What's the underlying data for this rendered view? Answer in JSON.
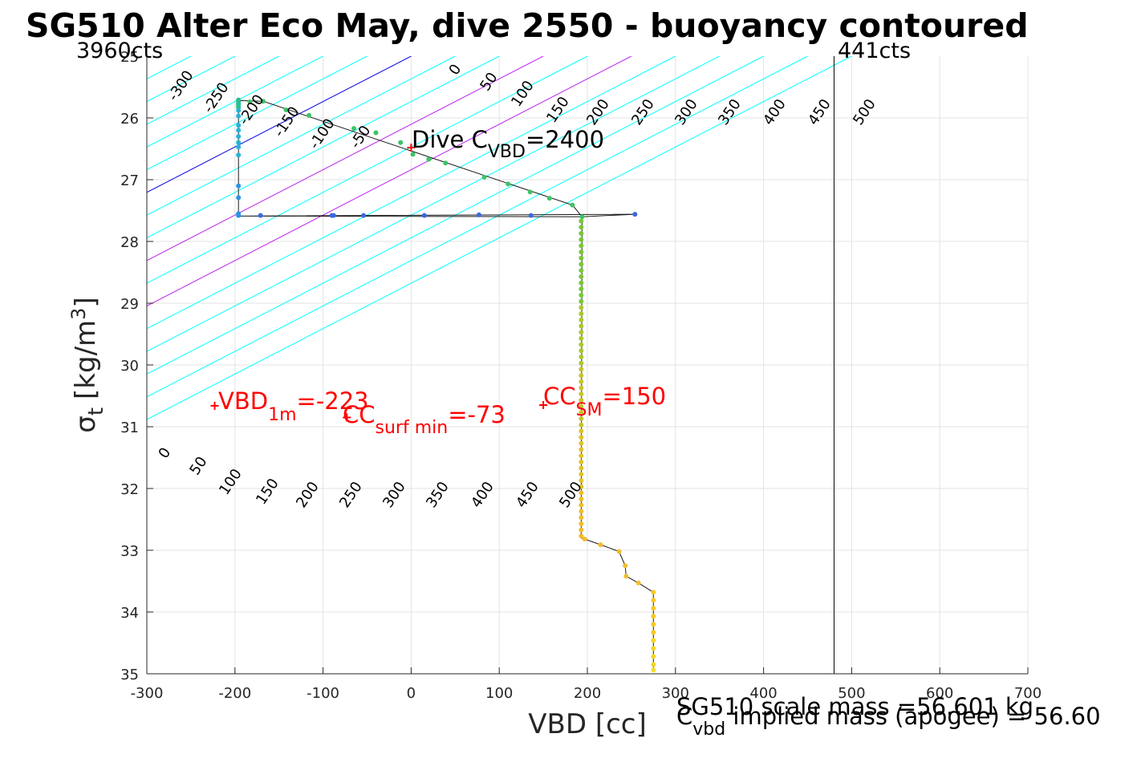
{
  "chart_data": {
    "type": "scatter",
    "title": "SG510 Alter Eco May, dive 2550 - buoyancy contoured",
    "xlabel": "VBD [cc]",
    "ylabel": {
      "sigma": "σ",
      "sub": "t",
      "unit": "[kg/m",
      "sup": "3",
      "close": "]"
    },
    "xlim": [
      -300,
      700
    ],
    "ylim": [
      25,
      35
    ],
    "y_reversed": true,
    "grid": true,
    "x_ticks": [
      -300,
      -200,
      -100,
      0,
      100,
      200,
      300,
      400,
      500,
      600,
      700
    ],
    "y_ticks": [
      26,
      27,
      28,
      29,
      30,
      31,
      32,
      33,
      34,
      35
    ],
    "y_top_partial_label": "25",
    "contours": {
      "slope_cc_per_sigma": -136,
      "cyan_values": [
        -300,
        -250,
        -200,
        -150,
        -100,
        -50,
        50,
        100,
        200,
        300,
        350,
        400,
        450,
        500
      ],
      "magenta_values": [
        150,
        250
      ],
      "blue_value": 0,
      "colors": {
        "cyan": "#00ffff",
        "magenta": "#bb22ee",
        "blue": "#0000dd"
      },
      "top_labels": [
        "-300",
        "-250",
        "-200",
        "-150",
        "-100",
        "-50",
        "0",
        "50",
        "100",
        "150",
        "200",
        "250",
        "300",
        "350",
        "400",
        "450",
        "500"
      ],
      "bottom_labels": [
        "0",
        "50",
        "100",
        "150",
        "200",
        "250",
        "300",
        "350",
        "400",
        "450",
        "500"
      ]
    },
    "vertical_lines": [
      {
        "x": 480,
        "color": "#000000"
      }
    ],
    "count_labels": {
      "left": "3960cts",
      "right": "441cts"
    },
    "profile": [
      {
        "x": -196,
        "y": 25.71,
        "c": "#2bc08f"
      },
      {
        "x": -196,
        "y": 25.73,
        "c": "#2bc08f"
      },
      {
        "x": -196,
        "y": 25.75,
        "c": "#2bc08f"
      },
      {
        "x": -196,
        "y": 25.77,
        "c": "#2bc08f"
      },
      {
        "x": -196,
        "y": 25.79,
        "c": "#2bc08f"
      },
      {
        "x": -196,
        "y": 25.81,
        "c": "#2bc08f"
      },
      {
        "x": -196,
        "y": 25.83,
        "c": "#2bc08f"
      },
      {
        "x": -183,
        "y": 25.74,
        "c": "#3cc467"
      },
      {
        "x": -168,
        "y": 25.73,
        "c": "#3cc467"
      },
      {
        "x": -142,
        "y": 25.87,
        "c": "#3cc467"
      },
      {
        "x": -116,
        "y": 25.96,
        "c": "#3cc467"
      },
      {
        "x": -65,
        "y": 26.17,
        "c": "#3cc467"
      },
      {
        "x": -40,
        "y": 26.24,
        "c": "#3cc467"
      },
      {
        "x": -12,
        "y": 26.4,
        "c": "#3cc467"
      },
      {
        "x": 2,
        "y": 26.59,
        "c": "#3cc467"
      },
      {
        "x": 20,
        "y": 26.67,
        "c": "#3cc467"
      },
      {
        "x": 39,
        "y": 26.73,
        "c": "#3cc467"
      },
      {
        "x": 83,
        "y": 26.96,
        "c": "#3cc467"
      },
      {
        "x": 110,
        "y": 27.07,
        "c": "#3cc467"
      },
      {
        "x": 135,
        "y": 27.2,
        "c": "#3cc467"
      },
      {
        "x": 157,
        "y": 27.3,
        "c": "#3cc467"
      },
      {
        "x": 183,
        "y": 27.41,
        "c": "#3cc467"
      },
      {
        "x": 194,
        "y": 27.6,
        "c": "#3cc467"
      },
      {
        "x": 254,
        "y": 27.56,
        "c": "#3a68e0"
      },
      {
        "x": 136,
        "y": 27.58,
        "c": "#3a68e0"
      },
      {
        "x": 77,
        "y": 27.57,
        "c": "#3a68e0"
      },
      {
        "x": 15,
        "y": 27.58,
        "c": "#3a68e0"
      },
      {
        "x": -54,
        "y": 27.58,
        "c": "#3a68e0"
      },
      {
        "x": -88,
        "y": 27.58,
        "c": "#3a68e0"
      },
      {
        "x": -90,
        "y": 27.58,
        "c": "#3a68e0"
      },
      {
        "x": -171,
        "y": 27.58,
        "c": "#3a68e0"
      },
      {
        "x": -196,
        "y": 27.58,
        "c": "#2596e8"
      },
      {
        "x": -196,
        "y": 27.55,
        "c": "#2596e8"
      },
      {
        "x": -196,
        "y": 27.29,
        "c": "#2596e8"
      },
      {
        "x": -196,
        "y": 27.1,
        "c": "#2596e8"
      },
      {
        "x": -196,
        "y": 26.6,
        "c": "#25b4d8"
      },
      {
        "x": -196,
        "y": 26.47,
        "c": "#25b4d8"
      },
      {
        "x": -196,
        "y": 26.4,
        "c": "#25b4d8"
      },
      {
        "x": -196,
        "y": 26.3,
        "c": "#25b4d8"
      },
      {
        "x": -196,
        "y": 26.2,
        "c": "#25b4d8"
      },
      {
        "x": -196,
        "y": 26.12,
        "c": "#25b4d8"
      },
      {
        "x": -196,
        "y": 25.97,
        "c": "#25b4d8"
      },
      {
        "x": -196,
        "y": 25.88,
        "c": "#25b4d8"
      },
      {
        "x": 193,
        "y": 27.67,
        "c": "#79c63a"
      },
      {
        "x": 193,
        "y": 27.77,
        "c": "#79c63a"
      },
      {
        "x": 193,
        "y": 27.87,
        "c": "#79c63a"
      },
      {
        "x": 193,
        "y": 27.97,
        "c": "#79c63a"
      },
      {
        "x": 193,
        "y": 28.07,
        "c": "#79c63a"
      },
      {
        "x": 193,
        "y": 28.17,
        "c": "#79c63a"
      },
      {
        "x": 193,
        "y": 28.27,
        "c": "#79c63a"
      },
      {
        "x": 193,
        "y": 28.37,
        "c": "#79c63a"
      },
      {
        "x": 193,
        "y": 28.47,
        "c": "#79c63a"
      },
      {
        "x": 193,
        "y": 28.57,
        "c": "#79c63a"
      },
      {
        "x": 193,
        "y": 28.67,
        "c": "#79c63a"
      },
      {
        "x": 193,
        "y": 28.77,
        "c": "#79c63a"
      },
      {
        "x": 193,
        "y": 28.87,
        "c": "#79c63a"
      },
      {
        "x": 193,
        "y": 28.97,
        "c": "#79c63a"
      },
      {
        "x": 193,
        "y": 29.07,
        "c": "#a8c832"
      },
      {
        "x": 193,
        "y": 29.17,
        "c": "#a8c832"
      },
      {
        "x": 193,
        "y": 29.27,
        "c": "#a8c832"
      },
      {
        "x": 193,
        "y": 29.37,
        "c": "#a8c832"
      },
      {
        "x": 193,
        "y": 29.47,
        "c": "#a8c832"
      },
      {
        "x": 193,
        "y": 29.57,
        "c": "#a8c832"
      },
      {
        "x": 193,
        "y": 29.67,
        "c": "#a8c832"
      },
      {
        "x": 193,
        "y": 29.77,
        "c": "#a8c832"
      },
      {
        "x": 193,
        "y": 29.87,
        "c": "#a8c832"
      },
      {
        "x": 193,
        "y": 29.97,
        "c": "#a8c832"
      },
      {
        "x": 193,
        "y": 30.07,
        "c": "#c6c430"
      },
      {
        "x": 193,
        "y": 30.17,
        "c": "#c6c430"
      },
      {
        "x": 193,
        "y": 30.27,
        "c": "#c6c430"
      },
      {
        "x": 193,
        "y": 30.37,
        "c": "#c6c430"
      },
      {
        "x": 193,
        "y": 30.47,
        "c": "#c6c430"
      },
      {
        "x": 193,
        "y": 30.57,
        "c": "#c6c430"
      },
      {
        "x": 193,
        "y": 30.67,
        "c": "#c6c430"
      },
      {
        "x": 193,
        "y": 30.77,
        "c": "#c6c430"
      },
      {
        "x": 193,
        "y": 30.87,
        "c": "#c6c430"
      },
      {
        "x": 193,
        "y": 30.97,
        "c": "#c6c430"
      },
      {
        "x": 193,
        "y": 31.07,
        "c": "#e0c22a"
      },
      {
        "x": 193,
        "y": 31.17,
        "c": "#e0c22a"
      },
      {
        "x": 193,
        "y": 31.27,
        "c": "#e0c22a"
      },
      {
        "x": 193,
        "y": 31.37,
        "c": "#e0c22a"
      },
      {
        "x": 193,
        "y": 31.47,
        "c": "#e0c22a"
      },
      {
        "x": 193,
        "y": 31.57,
        "c": "#e0c22a"
      },
      {
        "x": 193,
        "y": 31.67,
        "c": "#e0c22a"
      },
      {
        "x": 193,
        "y": 31.77,
        "c": "#e0c22a"
      },
      {
        "x": 193,
        "y": 31.87,
        "c": "#e0c22a"
      },
      {
        "x": 193,
        "y": 31.97,
        "c": "#e0c22a"
      },
      {
        "x": 193,
        "y": 32.07,
        "c": "#f0bc2a"
      },
      {
        "x": 193,
        "y": 32.17,
        "c": "#f0bc2a"
      },
      {
        "x": 193,
        "y": 32.27,
        "c": "#f0bc2a"
      },
      {
        "x": 193,
        "y": 32.37,
        "c": "#f0bc2a"
      },
      {
        "x": 193,
        "y": 32.47,
        "c": "#f0bc2a"
      },
      {
        "x": 193,
        "y": 32.57,
        "c": "#f0bc2a"
      },
      {
        "x": 193,
        "y": 32.67,
        "c": "#f0bc2a"
      },
      {
        "x": 193,
        "y": 32.77,
        "c": "#f0bc2a"
      },
      {
        "x": 197,
        "y": 32.82,
        "c": "#f2bc2c"
      },
      {
        "x": 215,
        "y": 32.91,
        "c": "#f2bc2c"
      },
      {
        "x": 236,
        "y": 33.02,
        "c": "#f2bc2c"
      },
      {
        "x": 243,
        "y": 33.25,
        "c": "#f2bc2c"
      },
      {
        "x": 244,
        "y": 33.42,
        "c": "#f2bc2c"
      },
      {
        "x": 258,
        "y": 33.53,
        "c": "#f2bc2c"
      },
      {
        "x": 275,
        "y": 33.68,
        "c": "#f4c82a"
      },
      {
        "x": 275,
        "y": 33.81,
        "c": "#f4c82a"
      },
      {
        "x": 275,
        "y": 33.94,
        "c": "#f4c82a"
      },
      {
        "x": 275,
        "y": 34.07,
        "c": "#f4c82a"
      },
      {
        "x": 275,
        "y": 34.2,
        "c": "#f4c82a"
      },
      {
        "x": 275,
        "y": 34.33,
        "c": "#f4c82a"
      },
      {
        "x": 275,
        "y": 34.46,
        "c": "#f4d42a"
      },
      {
        "x": 275,
        "y": 34.59,
        "c": "#f4d42a"
      },
      {
        "x": 275,
        "y": 34.72,
        "c": "#f4d42a"
      },
      {
        "x": 275,
        "y": 34.85,
        "c": "#f4d42a"
      },
      {
        "x": 275,
        "y": 34.94,
        "c": "#f4dc2a"
      }
    ],
    "profile_path": [
      {
        "x": -196,
        "y": 25.72
      },
      {
        "x": -168,
        "y": 25.73
      },
      {
        "x": 183,
        "y": 27.41
      },
      {
        "x": 194,
        "y": 27.6
      },
      {
        "x": 254,
        "y": 27.56
      },
      {
        "x": -196,
        "y": 27.59
      },
      {
        "x": -196,
        "y": 25.72
      },
      {
        "x": -196,
        "y": 27.59
      },
      {
        "x": 194,
        "y": 27.6
      },
      {
        "x": 193,
        "y": 32.8
      },
      {
        "x": 197,
        "y": 32.82
      },
      {
        "x": 215,
        "y": 32.91
      },
      {
        "x": 236,
        "y": 33.02
      },
      {
        "x": 243,
        "y": 33.25
      },
      {
        "x": 244,
        "y": 33.42
      },
      {
        "x": 258,
        "y": 33.53
      },
      {
        "x": 275,
        "y": 33.68
      },
      {
        "x": 275,
        "y": 34.94
      }
    ],
    "markers": [
      {
        "x": -223,
        "y": 30.66,
        "color": "#ff0000"
      },
      {
        "x": -73,
        "y": 30.85,
        "color": "#ff0000"
      },
      {
        "x": 150,
        "y": 30.65,
        "color": "#ff0000"
      },
      {
        "x": 0,
        "y": 26.48,
        "color": "#ff0000"
      }
    ],
    "annotations": {
      "dive_cvbd": {
        "main": "Dive C",
        "sub": "VBD",
        "tail": "=2400"
      },
      "vbd_1m": {
        "main": "VBD",
        "sub": "1m",
        "tail": "=-223"
      },
      "cc_surf_min": {
        "main": "CC",
        "sub": "surf min",
        "tail": "=-73"
      },
      "cc_sm": {
        "main": "CC",
        "sub": "SM",
        "tail": "=150"
      },
      "scale_mass": "SG510 scale mass =56.601 kg",
      "implied_mass": {
        "main": "C",
        "sub": "vbd",
        "tail": " implied mass (apogee) = 56.60"
      }
    }
  }
}
